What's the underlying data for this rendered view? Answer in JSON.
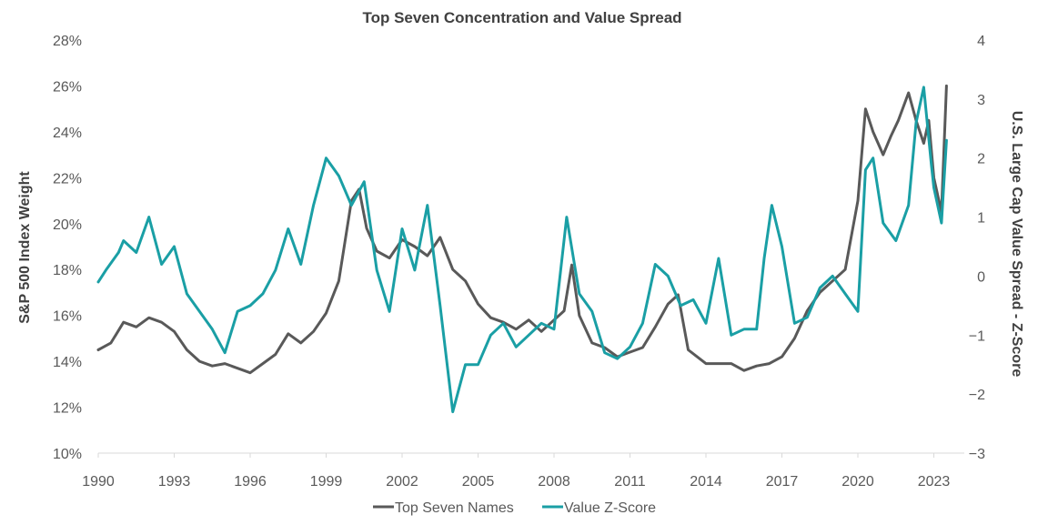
{
  "chart_data": {
    "type": "line",
    "title": "Top Seven Concentration and Value Spread",
    "ylabel_left": "S&P 500 Index Weight",
    "ylabel_right": "U.S. Large Cap Value Spread - Z-Score",
    "ylim_left": [
      10,
      28
    ],
    "ylim_right": [
      -3,
      4
    ],
    "xlim": [
      1990,
      2023.7
    ],
    "x_ticks": [
      1990,
      1993,
      1996,
      1999,
      2002,
      2005,
      2008,
      2011,
      2014,
      2017,
      2020,
      2023
    ],
    "x_tick_labels": [
      "1990",
      "1993",
      "1996",
      "1999",
      "2002",
      "2005",
      "2008",
      "2011",
      "2014",
      "2017",
      "2020",
      "2023"
    ],
    "y_left_ticks": [
      10,
      12,
      14,
      16,
      18,
      20,
      22,
      24,
      26,
      28
    ],
    "y_left_tick_labels": [
      "10%",
      "12%",
      "14%",
      "16%",
      "18%",
      "20%",
      "22%",
      "24%",
      "26%",
      "28%"
    ],
    "y_right_ticks": [
      -3,
      -2,
      -1,
      0,
      1,
      2,
      3,
      4
    ],
    "y_right_tick_labels": [
      "−3",
      "−2",
      "−1",
      "0",
      "1",
      "2",
      "3",
      "4"
    ],
    "series": [
      {
        "name": "Top Seven Names",
        "axis": "left",
        "color": "#595959",
        "x": [
          1990,
          1990.5,
          1991,
          1991.5,
          1992,
          1992.5,
          1993,
          1993.5,
          1994,
          1994.5,
          1995,
          1995.5,
          1996,
          1996.5,
          1997,
          1997.5,
          1998,
          1998.5,
          1999,
          1999.5,
          2000,
          2000.3,
          2000.6,
          2001,
          2001.5,
          2002,
          2002.5,
          2003,
          2003.5,
          2004,
          2004.5,
          2005,
          2005.5,
          2006,
          2006.5,
          2007,
          2007.5,
          2008,
          2008.4,
          2008.7,
          2009,
          2009.5,
          2010,
          2010.5,
          2011,
          2011.5,
          2012,
          2012.5,
          2012.9,
          2013.3,
          2014,
          2014.5,
          2015,
          2015.5,
          2016,
          2016.5,
          2017,
          2017.5,
          2018,
          2018.5,
          2019,
          2019.5,
          2020,
          2020.3,
          2020.6,
          2021,
          2021.3,
          2021.6,
          2022,
          2022.3,
          2022.6,
          2022.8,
          2023,
          2023.3,
          2023.5
        ],
        "values": [
          14.5,
          14.8,
          15.7,
          15.5,
          15.9,
          15.7,
          15.3,
          14.5,
          14.0,
          13.8,
          13.9,
          13.7,
          13.5,
          13.9,
          14.3,
          15.2,
          14.8,
          15.3,
          16.1,
          17.5,
          21.0,
          21.5,
          19.8,
          18.8,
          18.5,
          19.3,
          19.0,
          18.6,
          19.4,
          18.0,
          17.5,
          16.5,
          15.9,
          15.7,
          15.4,
          15.8,
          15.3,
          15.8,
          16.2,
          18.2,
          16.0,
          14.8,
          14.6,
          14.2,
          14.4,
          14.6,
          15.5,
          16.5,
          16.9,
          14.5,
          13.9,
          13.9,
          13.9,
          13.6,
          13.8,
          13.9,
          14.2,
          15.0,
          16.2,
          17.0,
          17.5,
          18.0,
          21.0,
          25.0,
          24.0,
          23.0,
          23.8,
          24.5,
          25.7,
          24.5,
          23.5,
          24.5,
          22.0,
          20.5,
          26.0
        ]
      },
      {
        "name": "Value Z-Score",
        "axis": "right",
        "color": "#1a9fa5",
        "x": [
          1990,
          1990.3,
          1990.8,
          1991,
          1991.5,
          1992,
          1992.5,
          1993,
          1993.5,
          1994,
          1994.5,
          1995,
          1995.5,
          1996,
          1996.5,
          1997,
          1997.5,
          1998,
          1998.5,
          1999,
          1999.5,
          2000,
          2000.5,
          2001,
          2001.5,
          2002,
          2002.5,
          2003,
          2003.5,
          2004,
          2004.5,
          2005,
          2005.5,
          2006,
          2006.5,
          2007,
          2007.5,
          2008,
          2008.5,
          2009,
          2009.5,
          2010,
          2010.5,
          2011,
          2011.5,
          2012,
          2012.5,
          2013,
          2013.5,
          2014,
          2014.5,
          2015,
          2015.5,
          2016,
          2016.3,
          2016.6,
          2017,
          2017.5,
          2018,
          2018.5,
          2019,
          2019.5,
          2020,
          2020.3,
          2020.6,
          2021,
          2021.5,
          2022,
          2022.3,
          2022.6,
          2022.9,
          2023,
          2023.3,
          2023.5
        ],
        "values": [
          -0.1,
          0.1,
          0.4,
          0.6,
          0.4,
          1.0,
          0.2,
          0.5,
          -0.3,
          -0.6,
          -0.9,
          -1.3,
          -0.6,
          -0.5,
          -0.3,
          0.1,
          0.8,
          0.2,
          1.2,
          2.0,
          1.7,
          1.2,
          1.6,
          0.1,
          -0.6,
          0.8,
          0.1,
          1.2,
          -0.5,
          -2.3,
          -1.5,
          -1.5,
          -1.0,
          -0.8,
          -1.2,
          -1.0,
          -0.8,
          -0.9,
          1.0,
          -0.3,
          -0.6,
          -1.3,
          -1.4,
          -1.2,
          -0.8,
          0.2,
          0.0,
          -0.5,
          -0.4,
          -0.8,
          0.3,
          -1.0,
          -0.9,
          -0.9,
          0.3,
          1.2,
          0.5,
          -0.8,
          -0.7,
          -0.2,
          0.0,
          -0.3,
          -0.6,
          1.8,
          2.0,
          0.9,
          0.6,
          1.2,
          2.6,
          3.2,
          1.9,
          1.5,
          0.9,
          2.3
        ]
      }
    ],
    "legend": {
      "position": "bottom",
      "items": [
        "Top Seven Names",
        "Value Z-Score"
      ]
    }
  }
}
